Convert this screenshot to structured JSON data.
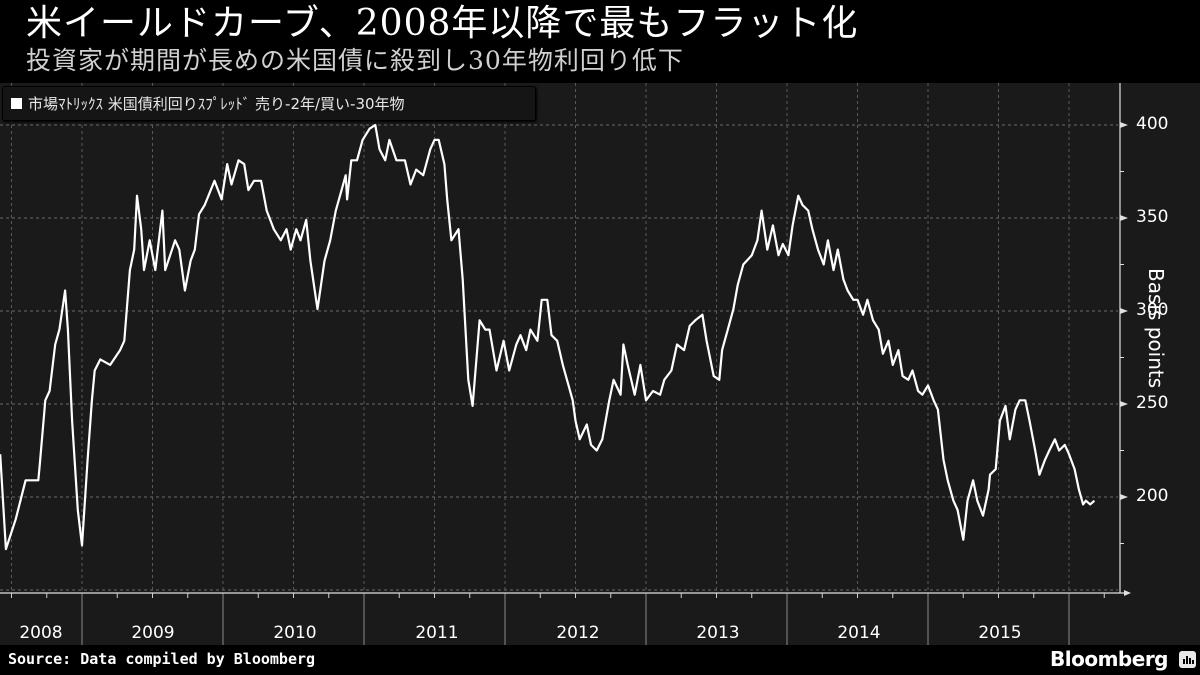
{
  "header": {
    "title": "米イールドカーブ、2008年以降で最もフラット化",
    "subtitle": "投資家が期間が長めの米国債に殺到し30年物利回り低下"
  },
  "legend": {
    "label": "市場ﾏﾄﾘｯｸｽ 米国債利回りｽﾌﾟﾚｯﾄﾞ 売り-2年/買い-30年物",
    "swatch_color": "#ffffff"
  },
  "axis": {
    "y_label": "Basis points",
    "y_ticks": [
      "400",
      "350",
      "300",
      "250",
      "200"
    ],
    "x_ticks": [
      "2008",
      "2009",
      "2010",
      "2011",
      "2012",
      "2013",
      "2014",
      "2015"
    ]
  },
  "footer": {
    "source": "Source: Data compiled by Bloomberg",
    "brand": "Bloomberg"
  },
  "colors": {
    "background": "#000000",
    "plot_background": "#1a1a1a",
    "line": "#ffffff",
    "grid": "#6a6a6a"
  },
  "chart_data": {
    "type": "line",
    "title": "米イールドカーブ、2008年以降で最もフラット化",
    "subtitle": "投資家が期間が長めの米国債に殺到し30年物利回り低下",
    "xlabel": "",
    "ylabel": "Basis points",
    "ylim": [
      150,
      420
    ],
    "y_ticks": [
      200,
      250,
      300,
      350,
      400
    ],
    "x_ticks": [
      "2008",
      "2009",
      "2010",
      "2011",
      "2012",
      "2013",
      "2014",
      "2015"
    ],
    "grid": true,
    "legend_position": "top-left",
    "series": [
      {
        "name": "市場ﾏﾄﾘｯｸｽ 米国債利回りｽﾌﾟﾚｯﾄﾞ 売り-2年/買い-30年物",
        "x_year": [
          2008.42,
          2008.46,
          2008.53,
          2008.6,
          2008.69,
          2008.7,
          2008.74,
          2008.77,
          2008.81,
          2008.84,
          2008.88,
          2008.9,
          2008.93,
          2008.97,
          2009.0,
          2009.04,
          2009.07,
          2009.09,
          2009.13,
          2009.2,
          2009.27,
          2009.3,
          2009.34,
          2009.37,
          2009.39,
          2009.42,
          2009.44,
          2009.48,
          2009.52,
          2009.57,
          2009.59,
          2009.66,
          2009.69,
          2009.73,
          2009.77,
          2009.8,
          2009.83,
          2009.87,
          2009.94,
          2009.99,
          2010.03,
          2010.06,
          2010.11,
          2010.15,
          2010.18,
          2010.22,
          2010.27,
          2010.31,
          2010.36,
          2010.41,
          2010.45,
          2010.48,
          2010.52,
          2010.55,
          2010.59,
          2010.62,
          2010.66,
          2010.67,
          2010.72,
          2010.76,
          2010.8,
          2010.83,
          2010.87,
          2010.88,
          2010.91,
          2010.95,
          2010.99,
          2011.04,
          2011.08,
          2011.11,
          2011.15,
          2011.18,
          2011.23,
          2011.29,
          2011.33,
          2011.37,
          2011.42,
          2011.47,
          2011.5,
          2011.53,
          2011.57,
          2011.59,
          2011.62,
          2011.67,
          2011.7,
          2011.74,
          2011.77,
          2011.82,
          2011.86,
          2011.89,
          2011.94,
          2011.99,
          2012.03,
          2012.08,
          2012.11,
          2012.15,
          2012.18,
          2012.23,
          2012.26,
          2012.3,
          2012.33,
          2012.37,
          2012.41,
          2012.48,
          2012.5,
          2012.53,
          2012.58,
          2012.61,
          2012.65,
          2012.69,
          2012.74,
          2012.77,
          2012.82,
          2012.84,
          2012.87,
          2012.92,
          2012.96,
          2013.0,
          2013.05,
          2013.1,
          2013.13,
          2013.18,
          2013.22,
          2013.27,
          2013.31,
          2013.35,
          2013.4,
          2013.43,
          2013.48,
          2013.52,
          2013.54,
          2013.58,
          2013.62,
          2013.65,
          2013.69,
          2013.75,
          2013.79,
          2013.82,
          2013.86,
          2013.9,
          2013.94,
          2013.97,
          2014.01,
          2014.04,
          2014.08,
          2014.11,
          2014.15,
          2014.18,
          2014.22,
          2014.26,
          2014.29,
          2014.33,
          2014.36,
          2014.4,
          2014.43,
          2014.47,
          2014.5,
          2014.54,
          2014.57,
          2014.61,
          2014.65,
          2014.68,
          2014.72,
          2014.75,
          2014.79,
          2014.82,
          2014.86,
          2014.89,
          2014.93,
          2014.96,
          2015.0,
          2015.04,
          2015.07,
          2015.11,
          2015.14,
          2015.18,
          2015.21,
          2015.25,
          2015.28,
          2015.32,
          2015.35,
          2015.39,
          2015.43,
          2015.44,
          2015.48,
          2015.51,
          2015.55,
          2015.58,
          2015.62,
          2015.65,
          2015.69,
          2015.72,
          2015.76,
          2015.79,
          2015.83,
          2015.86,
          2015.9,
          2015.93,
          2015.97,
          2016.0,
          2016.04,
          2016.07,
          2016.1,
          2016.12,
          2016.15,
          2016.18
        ],
        "values": [
          223,
          172,
          188,
          209,
          209,
          217,
          252,
          257,
          282,
          290,
          311,
          290,
          241,
          193,
          174,
          220,
          252,
          268,
          274,
          271,
          279,
          284,
          322,
          333,
          362,
          344,
          322,
          338,
          322,
          354,
          322,
          338,
          333,
          311,
          327,
          333,
          352,
          357,
          370,
          360,
          379,
          368,
          381,
          379,
          365,
          370,
          370,
          354,
          344,
          338,
          344,
          333,
          344,
          338,
          349,
          327,
          306,
          301,
          327,
          338,
          354,
          362,
          373,
          360,
          381,
          381,
          392,
          398,
          400,
          387,
          381,
          392,
          381,
          381,
          368,
          376,
          373,
          387,
          392,
          392,
          379,
          360,
          338,
          344,
          317,
          263,
          249,
          295,
          290,
          290,
          268,
          284,
          268,
          282,
          287,
          279,
          290,
          284,
          306,
          306,
          287,
          284,
          271,
          252,
          241,
          231,
          239,
          228,
          225,
          231,
          252,
          263,
          255,
          282,
          271,
          255,
          271,
          252,
          257,
          255,
          263,
          268,
          282,
          279,
          292,
          295,
          298,
          284,
          265,
          263,
          279,
          290,
          301,
          314,
          325,
          330,
          338,
          354,
          333,
          346,
          330,
          336,
          330,
          346,
          362,
          357,
          354,
          344,
          333,
          325,
          338,
          322,
          333,
          317,
          311,
          306,
          306,
          298,
          306,
          295,
          290,
          277,
          284,
          271,
          279,
          265,
          263,
          268,
          257,
          255,
          260,
          252,
          247,
          220,
          209,
          198,
          193,
          177,
          198,
          209,
          198,
          190,
          204,
          212,
          215,
          241,
          249,
          231,
          247,
          252,
          252,
          241,
          225,
          212,
          220,
          225,
          231,
          225,
          228,
          223,
          215,
          204,
          196,
          198,
          196,
          198,
          196,
          193,
          180,
          185,
          177
        ]
      }
    ]
  }
}
